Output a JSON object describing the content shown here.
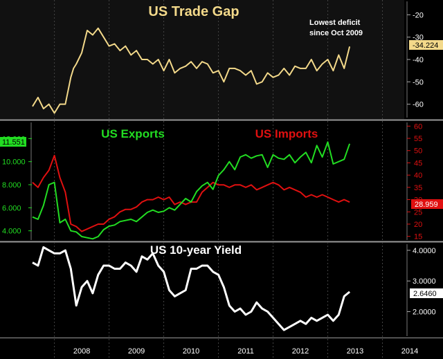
{
  "colors": {
    "background": "#000000",
    "frame_top": "#1b1b1b",
    "frame_bottom": "#3a3a3a",
    "panel_divider": "#9a9a9a",
    "grid": "#555555",
    "trade": "#f3d98a",
    "exports": "#22dd22",
    "imports": "#e01010",
    "yield": "#ffffff",
    "axis_text": "#ffffff"
  },
  "chart_data": [
    {
      "type": "line",
      "title": "US Trade Gap",
      "annotation": "Lowest deficit\nsince Oct 2009",
      "y_axis": {
        "side": "right",
        "ylim": [
          -66,
          -14
        ],
        "ticks": [
          -20,
          -30,
          -40,
          -50,
          -60
        ],
        "tick_labels": [
          "-20",
          "-30",
          "-40",
          "-50",
          "-60"
        ]
      },
      "last_value_label": "-34.224",
      "series": [
        {
          "color": "#f3d98a",
          "x": [
            2007.6,
            2007.7,
            2007.8,
            2007.9,
            2008.0,
            2008.1,
            2008.2,
            2008.3,
            2008.35,
            2008.4,
            2008.5,
            2008.6,
            2008.7,
            2008.8,
            2008.9,
            2009.0,
            2009.1,
            2009.2,
            2009.3,
            2009.4,
            2009.5,
            2009.6,
            2009.7,
            2009.8,
            2009.9,
            2010.0,
            2010.1,
            2010.2,
            2010.3,
            2010.4,
            2010.5,
            2010.6,
            2010.7,
            2010.8,
            2010.9,
            2011.0,
            2011.1,
            2011.2,
            2011.3,
            2011.4,
            2011.5,
            2011.6,
            2011.7,
            2011.8,
            2011.9,
            2012.0,
            2012.1,
            2012.2,
            2012.3,
            2012.4,
            2012.5,
            2012.6,
            2012.7,
            2012.8,
            2012.9,
            2013.0,
            2013.1,
            2013.2,
            2013.3,
            2013.4
          ],
          "y": [
            -61,
            -57,
            -62,
            -60,
            -64,
            -60,
            -60,
            -48,
            -44,
            -42,
            -37,
            -27,
            -29,
            -26,
            -30,
            -34,
            -33,
            -36,
            -34,
            -38,
            -36,
            -40,
            -40,
            -42,
            -40,
            -45,
            -40,
            -46,
            -44,
            -43,
            -41,
            -44,
            -41,
            -42,
            -46,
            -45,
            -50,
            -44,
            -44,
            -45,
            -47,
            -45,
            -51,
            -50,
            -46,
            -48,
            -47,
            -44,
            -47,
            -43,
            -44,
            -44,
            -40,
            -45,
            -42,
            -40,
            -45,
            -38,
            -44,
            -34.224
          ]
        }
      ]
    },
    {
      "type": "line",
      "title": "",
      "series_labels": [
        "US Exports",
        "US Imports"
      ],
      "y_axis_left": {
        "ylim": [
          3.2,
          13.4
        ],
        "ticks": [
          4,
          6,
          8,
          10,
          12
        ],
        "tick_labels": [
          "4.000",
          "6.000",
          "8.000",
          "10.000",
          "12.000"
        ]
      },
      "y_axis_right": {
        "ylim": [
          13.5,
          61.5
        ],
        "ticks": [
          15,
          20,
          25,
          30,
          35,
          40,
          45,
          50,
          55,
          60
        ],
        "tick_labels": [
          "15",
          "20",
          "25",
          "30",
          "35",
          "40",
          "45",
          "50",
          "55",
          "60"
        ]
      },
      "last_value_left": "11.551",
      "last_value_right": "28.959",
      "series": [
        {
          "name": "US Exports",
          "axis": "left",
          "color": "#22dd22",
          "x": [
            2007.6,
            2007.7,
            2007.8,
            2007.9,
            2008.0,
            2008.1,
            2008.2,
            2008.3,
            2008.4,
            2008.5,
            2008.6,
            2008.7,
            2008.8,
            2008.9,
            2009.0,
            2009.1,
            2009.2,
            2009.3,
            2009.4,
            2009.5,
            2009.6,
            2009.7,
            2009.8,
            2009.9,
            2010.0,
            2010.1,
            2010.2,
            2010.3,
            2010.4,
            2010.5,
            2010.6,
            2010.7,
            2010.8,
            2010.9,
            2011.0,
            2011.1,
            2011.2,
            2011.3,
            2011.4,
            2011.5,
            2011.6,
            2011.7,
            2011.8,
            2011.9,
            2012.0,
            2012.1,
            2012.2,
            2012.3,
            2012.4,
            2012.5,
            2012.6,
            2012.7,
            2012.8,
            2012.9,
            2013.0,
            2013.1,
            2013.2,
            2013.3,
            2013.4
          ],
          "y": [
            5.2,
            5.0,
            6.2,
            8.0,
            8.2,
            4.7,
            5.0,
            4.0,
            3.9,
            3.5,
            3.4,
            3.3,
            3.5,
            4.1,
            4.4,
            4.5,
            4.8,
            4.9,
            5.0,
            4.8,
            5.2,
            5.6,
            5.8,
            5.6,
            5.7,
            6.0,
            5.8,
            6.3,
            6.8,
            6.5,
            7.4,
            7.9,
            8.2,
            7.6,
            8.8,
            9.3,
            10.0,
            9.3,
            10.4,
            10.6,
            10.3,
            10.5,
            10.6,
            9.5,
            10.6,
            10.3,
            10.2,
            10.6,
            9.9,
            10.4,
            10.8,
            9.9,
            11.4,
            10.4,
            11.7,
            9.8,
            10.0,
            10.2,
            11.55
          ]
        },
        {
          "name": "US Imports",
          "axis": "right",
          "color": "#e01010",
          "x": [
            2007.6,
            2007.7,
            2007.8,
            2007.9,
            2008.0,
            2008.1,
            2008.2,
            2008.3,
            2008.4,
            2008.5,
            2008.6,
            2008.7,
            2008.8,
            2008.9,
            2009.0,
            2009.1,
            2009.2,
            2009.3,
            2009.4,
            2009.5,
            2009.6,
            2009.7,
            2009.8,
            2009.9,
            2010.0,
            2010.1,
            2010.2,
            2010.3,
            2010.4,
            2010.5,
            2010.6,
            2010.7,
            2010.8,
            2010.9,
            2011.0,
            2011.1,
            2011.2,
            2011.3,
            2011.4,
            2011.5,
            2011.6,
            2011.7,
            2011.8,
            2011.9,
            2012.0,
            2012.1,
            2012.2,
            2012.3,
            2012.4,
            2012.5,
            2012.6,
            2012.7,
            2012.8,
            2012.9,
            2013.0,
            2013.1,
            2013.2,
            2013.3,
            2013.4
          ],
          "y": [
            37,
            35,
            39,
            42,
            48,
            39,
            33,
            20,
            19,
            17,
            18,
            19,
            20,
            20,
            22,
            23,
            25,
            26,
            26,
            27,
            29,
            30,
            30,
            31,
            30,
            31,
            28,
            29,
            28,
            29,
            29,
            33,
            35,
            37,
            36,
            36,
            35,
            36,
            36,
            35,
            36,
            34,
            35,
            36,
            37,
            36,
            34,
            35,
            34,
            33,
            31,
            32,
            31,
            32,
            31,
            30,
            29,
            30,
            28.959
          ]
        }
      ]
    },
    {
      "type": "line",
      "title": "US 10-year Yield",
      "y_axis": {
        "side": "right",
        "ylim": [
          1.2,
          4.2
        ],
        "ticks": [
          2,
          3,
          4
        ],
        "tick_labels": [
          "2.0000",
          "3.0000",
          "4.0000"
        ]
      },
      "x_axis": {
        "tick_labels": [
          "2008",
          "2009",
          "2010",
          "2011",
          "2012",
          "2013",
          "2014"
        ]
      },
      "last_value_label": "2.6460",
      "series": [
        {
          "color": "#ffffff",
          "x": [
            2007.6,
            2007.7,
            2007.8,
            2007.9,
            2008.0,
            2008.1,
            2008.2,
            2008.3,
            2008.4,
            2008.5,
            2008.6,
            2008.7,
            2008.8,
            2008.9,
            2009.0,
            2009.1,
            2009.2,
            2009.3,
            2009.4,
            2009.5,
            2009.6,
            2009.7,
            2009.8,
            2009.9,
            2010.0,
            2010.1,
            2010.2,
            2010.3,
            2010.4,
            2010.5,
            2010.6,
            2010.7,
            2010.8,
            2010.9,
            2011.0,
            2011.1,
            2011.2,
            2011.3,
            2011.4,
            2011.5,
            2011.6,
            2011.7,
            2011.8,
            2011.9,
            2012.0,
            2012.1,
            2012.2,
            2012.3,
            2012.4,
            2012.5,
            2012.6,
            2012.7,
            2012.8,
            2012.9,
            2013.0,
            2013.1,
            2013.2,
            2013.3,
            2013.4
          ],
          "y": [
            3.6,
            3.5,
            4.1,
            4.0,
            3.9,
            3.9,
            4.0,
            3.4,
            2.2,
            2.8,
            3.0,
            2.6,
            3.2,
            3.5,
            3.5,
            3.4,
            3.4,
            3.6,
            3.5,
            3.3,
            3.8,
            3.7,
            3.9,
            3.5,
            3.3,
            2.7,
            2.5,
            2.6,
            2.7,
            3.4,
            3.4,
            3.5,
            3.5,
            3.3,
            3.2,
            2.8,
            2.2,
            2.0,
            2.1,
            1.9,
            2.0,
            2.3,
            2.1,
            2.0,
            1.8,
            1.6,
            1.4,
            1.5,
            1.6,
            1.7,
            1.6,
            1.8,
            1.7,
            1.8,
            1.9,
            1.7,
            1.9,
            2.5,
            2.646
          ]
        }
      ]
    }
  ]
}
